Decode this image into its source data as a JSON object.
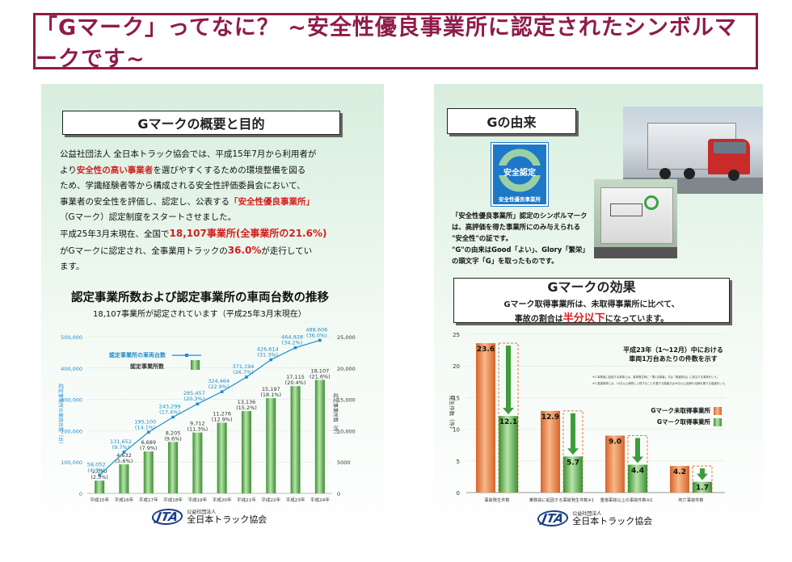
{
  "title": "「Gマーク」ってなに？ ~安全性優良事業所に認定されたシンボルマークです~",
  "left": {
    "heading": "Gマークの概要と目的",
    "body": {
      "l1": "公益社団法人 全日本トラック協会では、平成15年7月から利用者が",
      "l2a": "より",
      "l2b": "安全性の高い事業者",
      "l2c": "を選びやすくするための環境整備を図る",
      "l3": "ため、学識経験者等から構成される安全性評価委員会において、",
      "l4a": "事業者の安全性を評価し、認定し、公表する",
      "l4b": "「安全性優良事業所」",
      "l5": "（Gマーク）認定制度をスタートさせました。",
      "l6a": "平成25年3月末現在、全国で",
      "l6b": "18,107事業所(全事業所の21.6%)",
      "l7a": "がGマークに認定され、全事業用トラックの",
      "l7b": "36.0%",
      "l7c": "が走行してい",
      "l8": "ます。"
    },
    "chart_title": "認定事業所数および認定事業所の車両台数の推移",
    "chart_subtitle": "18,107事業所が認定されています（平成25年3月末現在）",
    "logo": {
      "mark": "JTA",
      "small": "公益社団法人",
      "name": "全日本トラック協会"
    }
  },
  "right": {
    "heading1": "Gの由来",
    "symbol": {
      "top": "安全認定",
      "bottom": "安全性優良事業所"
    },
    "caption": [
      "「安全性優良事業所」認定のシンボルマーク",
      "は、高評価を得た事業所にのみ与えられる",
      "\"安全性\"の証です。",
      "\"G\"の由来はGood「よい」、Glory「繁栄」",
      "の頭文字「G」を取ったものです。"
    ],
    "heading2": "Gマークの効果",
    "effect_l1": "Gマーク取得事業所は、未取得事業所に比べて、",
    "effect_l2a": "事故の割合は",
    "effect_l2b": "半分以下",
    "effect_l2c": "になっています。",
    "logo": {
      "mark": "JTA",
      "small": "公益社団法人",
      "name": "全日本トラック協会"
    }
  },
  "chart_data": [
    {
      "type": "bar",
      "categories": [
        "平成15年",
        "平成16年",
        "平成17年",
        "平成18年",
        "平成19年",
        "平成20年",
        "平成21年",
        "平成22年",
        "平成23年",
        "平成24年"
      ],
      "series": [
        {
          "name": "認定事業所数",
          "values": [
            2030,
            4632,
            6689,
            8205,
            9712,
            11276,
            13136,
            15197,
            17115,
            18107
          ],
          "labels": [
            "2,030",
            "4,632",
            "6,689",
            "8,205",
            "9,712",
            "11,276",
            "13,136",
            "15,197",
            "17,115",
            "18,107"
          ],
          "pcts": [
            "(2.5%)",
            "(5.6%)",
            "(7.9%)",
            "(9.6%)",
            "(11.3%)",
            "(12.9%)",
            "(15.2%)",
            "(18.1%)",
            "(20.4%)",
            "(21.6%)"
          ]
        },
        {
          "name": "認定事業所の車両台数",
          "type": "line",
          "values": [
            58052,
            131652,
            195100,
            243299,
            285457,
            324464,
            371194,
            426614,
            464928,
            488606
          ],
          "labels": [
            "58,052",
            "131,652",
            "195,100",
            "243,299",
            "285,457",
            "324,464",
            "371,194",
            "426,614",
            "464,928",
            "488,606"
          ],
          "pcts": [
            "(4.3%)",
            "(9.7%)",
            "(14.1%)",
            "(17.4%)",
            "(20.3%)",
            "(22.9%)",
            "(26.7%)",
            "(31.3%)",
            "(34.2%)",
            "(36.0%)"
          ]
        }
      ],
      "ylabel": "認定事業所の車両台数（台）",
      "y2label": "認定事業所数（所）",
      "ylim": [
        0,
        500000
      ],
      "y2lim": [
        0,
        25000
      ],
      "yticks": [
        "0",
        "100,000",
        "200,000",
        "300,000",
        "400,000",
        "500,000"
      ],
      "y2ticks": [
        "0",
        "5000",
        "10,000",
        "15,000",
        "20,000",
        "25,000"
      ],
      "legend": [
        "認定事業所の車両台数",
        "認定事業所数"
      ]
    },
    {
      "type": "bar",
      "title": "平成23年（1～12月）中における",
      "subtitle": "車両1万台あたりの件数を示す",
      "categories": [
        "事故発生件数",
        "乗務員に起因する事故発生件数",
        "重傷事故以上の事故件数",
        "死亡事故件数"
      ],
      "category_sup": [
        "",
        "※1",
        "※2",
        ""
      ],
      "series": [
        {
          "name": "Gマーク未取得事業所",
          "values": [
            23.6,
            12.9,
            9.0,
            4.2
          ],
          "labels": [
            "23.6",
            "12.9",
            "9.0",
            "4.2"
          ]
        },
        {
          "name": "Gマーク取得事業所",
          "values": [
            12.1,
            5.7,
            4.4,
            1.7
          ],
          "labels": [
            "12.1",
            "5.7",
            "4.4",
            "1.7"
          ]
        }
      ],
      "ylabel": "発生件数（件）",
      "ylim": [
        0,
        25
      ],
      "yticks": [
        "0",
        "5",
        "10",
        "15",
        "20",
        "25"
      ],
      "notes": [
        "※1 事業者に起因する事故とは、事故発生時に「第1当事者」又は「被害相当」に該当する事故をいう。",
        "※2 重傷事故とは、14日以上病院に入院することを要する傷害又は30日以上医師の治療を要する傷害をいう。"
      ]
    }
  ],
  "colors": {
    "title": "#8e1c4a",
    "accent_red": "#d42020",
    "green_bar": "#55b048",
    "orange_bar": "#e8763a",
    "line_blue": "#1f8ccc",
    "panel_green": "#d8eedd"
  }
}
